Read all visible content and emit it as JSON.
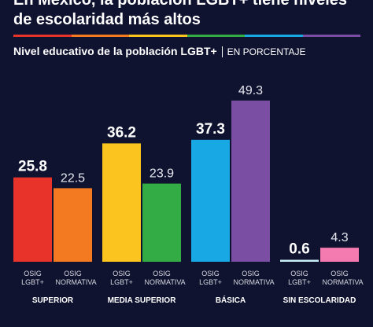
{
  "chart_data": {
    "type": "bar",
    "title": "En México, la población LGBT+ tiene niveles de escolaridad más altos",
    "subtitle": "Nivel educativo de la población LGBT+",
    "unit": "EN PORCENTAJE",
    "categories": [
      "SUPERIOR",
      "MEDIA SUPERIOR",
      "BÁSICA",
      "SIN ESCOLARIDAD"
    ],
    "series": [
      {
        "name": "OSIG LGBT+",
        "colors": [
          "#e8332b",
          "#fcc41e",
          "#18a8e4",
          "#c8eef7"
        ],
        "values": [
          25.8,
          36.2,
          37.3,
          0.6
        ]
      },
      {
        "name": "OSIG NORMATIVA",
        "colors": [
          "#f47a22",
          "#33ac45",
          "#7a4ea3",
          "#f37bb0"
        ],
        "values": [
          22.5,
          23.9,
          49.3,
          4.3
        ]
      }
    ],
    "ylim": [
      0,
      50
    ]
  }
}
